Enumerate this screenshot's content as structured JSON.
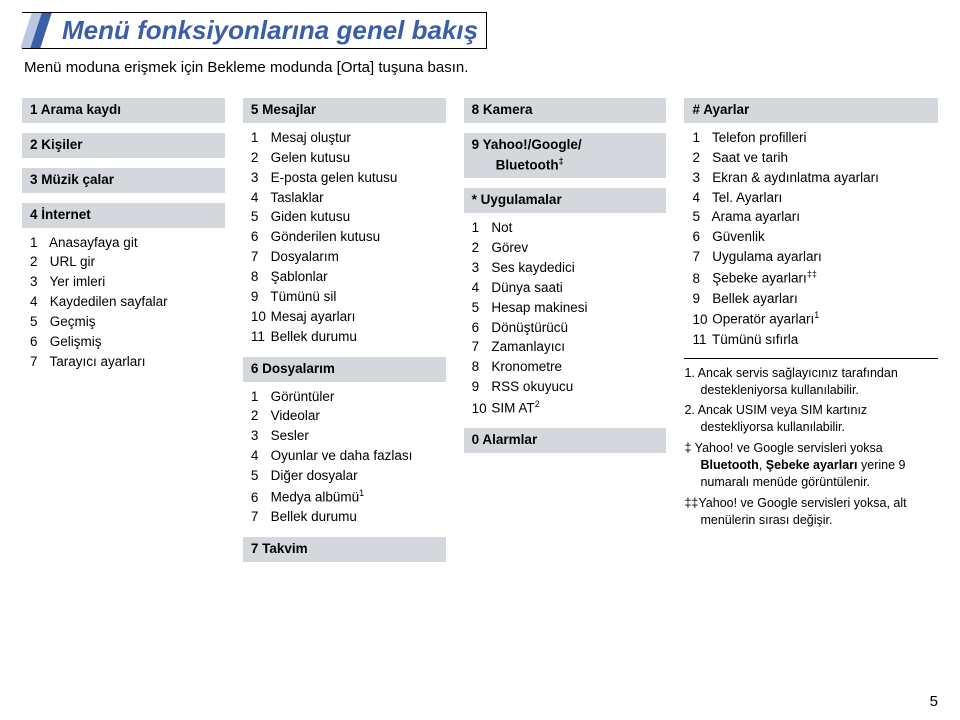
{
  "title": "Menü fonksiyonlarına genel bakış",
  "subtitle": "Menü moduna erişmek için Bekleme modunda [Orta] tuşuna basın.",
  "pagenum": "5",
  "col1": {
    "h1": "1  Arama kaydı",
    "h2": "2  Kişiler",
    "h3": "3  Müzik çalar",
    "h4": "4  İnternet",
    "items4": [
      {
        "n": "1",
        "t": "Anasayfaya git"
      },
      {
        "n": "2",
        "t": "URL gir"
      },
      {
        "n": "3",
        "t": "Yer imleri"
      },
      {
        "n": "4",
        "t": "Kaydedilen sayfalar"
      },
      {
        "n": "5",
        "t": "Geçmiş"
      },
      {
        "n": "6",
        "t": "Gelişmiş"
      },
      {
        "n": "7",
        "t": "Tarayıcı ayarları"
      }
    ]
  },
  "col2": {
    "h5": "5  Mesajlar",
    "items5": [
      {
        "n": "1",
        "t": "Mesaj oluştur"
      },
      {
        "n": "2",
        "t": "Gelen kutusu"
      },
      {
        "n": "3",
        "t": "E-posta gelen kutusu"
      },
      {
        "n": "4",
        "t": "Taslaklar"
      },
      {
        "n": "5",
        "t": "Giden kutusu"
      },
      {
        "n": "6",
        "t": "Gönderilen kutusu"
      },
      {
        "n": "7",
        "t": "Dosyalarım"
      },
      {
        "n": "8",
        "t": "Şablonlar"
      },
      {
        "n": "9",
        "t": "Tümünü sil"
      },
      {
        "n": "10",
        "t": "Mesaj ayarları"
      },
      {
        "n": "11",
        "t": "Bellek durumu"
      }
    ],
    "h6": "6  Dosyalarım",
    "items6": [
      {
        "n": "1",
        "t": "Görüntüler"
      },
      {
        "n": "2",
        "t": "Videolar"
      },
      {
        "n": "3",
        "t": "Sesler"
      },
      {
        "n": "4",
        "t": "Oyunlar ve daha fazlası"
      },
      {
        "n": "5",
        "t": "Diğer dosyalar"
      },
      {
        "n": "6",
        "t": "Medya albümü",
        "sup": "1"
      },
      {
        "n": "7",
        "t": "Bellek durumu"
      }
    ],
    "h7": "7  Takvim"
  },
  "col3": {
    "h8": "8  Kamera",
    "h9a": "9  Yahoo!/Google/",
    "h9b": "Bluetooth",
    "h9sup": "‡",
    "hstar": "*  Uygulamalar",
    "itemsStar": [
      {
        "n": "1",
        "t": "Not"
      },
      {
        "n": "2",
        "t": "Görev"
      },
      {
        "n": "3",
        "t": "Ses kaydedici"
      },
      {
        "n": "4",
        "t": "Dünya saati"
      },
      {
        "n": "5",
        "t": "Hesap makinesi"
      },
      {
        "n": "6",
        "t": "Dönüştürücü"
      },
      {
        "n": "7",
        "t": "Zamanlayıcı"
      },
      {
        "n": "8",
        "t": "Kronometre"
      },
      {
        "n": "9",
        "t": "RSS okuyucu"
      },
      {
        "n": "10",
        "t": "SIM AT",
        "sup": "2"
      }
    ],
    "h0": "0  Alarmlar"
  },
  "col4": {
    "hhash": "#  Ayarlar",
    "itemsHash": [
      {
        "n": "1",
        "t": "Telefon profilleri"
      },
      {
        "n": "2",
        "t": "Saat ve tarih"
      },
      {
        "n": "3",
        "t": "Ekran & aydınlatma ayarları"
      },
      {
        "n": "4",
        "t": "Tel. Ayarları"
      },
      {
        "n": "5",
        "t": "Arama ayarları"
      },
      {
        "n": "6",
        "t": "Güvenlik"
      },
      {
        "n": "7",
        "t": "Uygulama ayarları"
      },
      {
        "n": "8",
        "t": "Şebeke ayarları",
        "sup": "‡‡"
      },
      {
        "n": "9",
        "t": "Bellek ayarları"
      },
      {
        "n": "10",
        "t": "Operatör ayarları",
        "sup": "1"
      },
      {
        "n": "11",
        "t": "Tümünü sıfırla"
      }
    ],
    "note1": "1. Ancak servis sağlayıcınız tarafından destekleniyorsa kullanılabilir.",
    "note2": "2. Ancak USIM veya SIM kartınız destekliyorsa kullanılabilir.",
    "note3pre": "‡ Yahoo! ve Google servisleri yoksa ",
    "note3b1": "Bluetooth",
    "note3mid": ", ",
    "note3b2": "Şebeke ayarları",
    "note3post": " yerine 9 numaralı menüde görüntülenir.",
    "note4": "‡‡Yahoo! ve Google servisleri yoksa, alt menülerin sırası değişir."
  }
}
